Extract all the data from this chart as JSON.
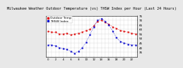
{
  "title": "Milwaukee Weather Outdoor Temperature (vs) THSW Index per Hour (Last 24 Hours)",
  "title_fontsize": 3.8,
  "background_color": "#e8e8e8",
  "plot_bg_color": "#ffffff",
  "grid_color": "#aaaaaa",
  "hours": [
    0,
    1,
    2,
    3,
    4,
    5,
    6,
    7,
    8,
    9,
    10,
    11,
    12,
    13,
    14,
    15,
    16,
    17,
    18,
    19,
    20,
    21,
    22,
    23
  ],
  "temp": [
    58,
    57,
    57,
    55,
    55,
    56,
    54,
    55,
    56,
    57,
    59,
    60,
    64,
    69,
    70,
    68,
    66,
    63,
    61,
    59,
    58,
    57,
    56,
    55
  ],
  "thsw": [
    43,
    43,
    42,
    40,
    39,
    38,
    36,
    34,
    36,
    40,
    46,
    54,
    63,
    70,
    72,
    69,
    65,
    58,
    51,
    47,
    45,
    44,
    43,
    43
  ],
  "temp_color": "#dd0000",
  "thsw_color": "#0000cc",
  "ylim_min": 30,
  "ylim_max": 75,
  "yticks": [
    35,
    40,
    45,
    50,
    55,
    60,
    65,
    70,
    75
  ],
  "ytick_labels": [
    "35",
    "40",
    "45",
    "50",
    "55",
    "60",
    "65",
    "70",
    "75"
  ],
  "ytick_fontsize": 3.0,
  "xtick_fontsize": 2.8,
  "xtick_positions": [
    0,
    2,
    4,
    6,
    8,
    10,
    12,
    14,
    16,
    18,
    20,
    22
  ],
  "legend_labels": [
    "Outdoor Temp",
    "THSW Index"
  ],
  "legend_fontsize": 3.2,
  "dot_size": 1.2,
  "linewidth": 0.5
}
